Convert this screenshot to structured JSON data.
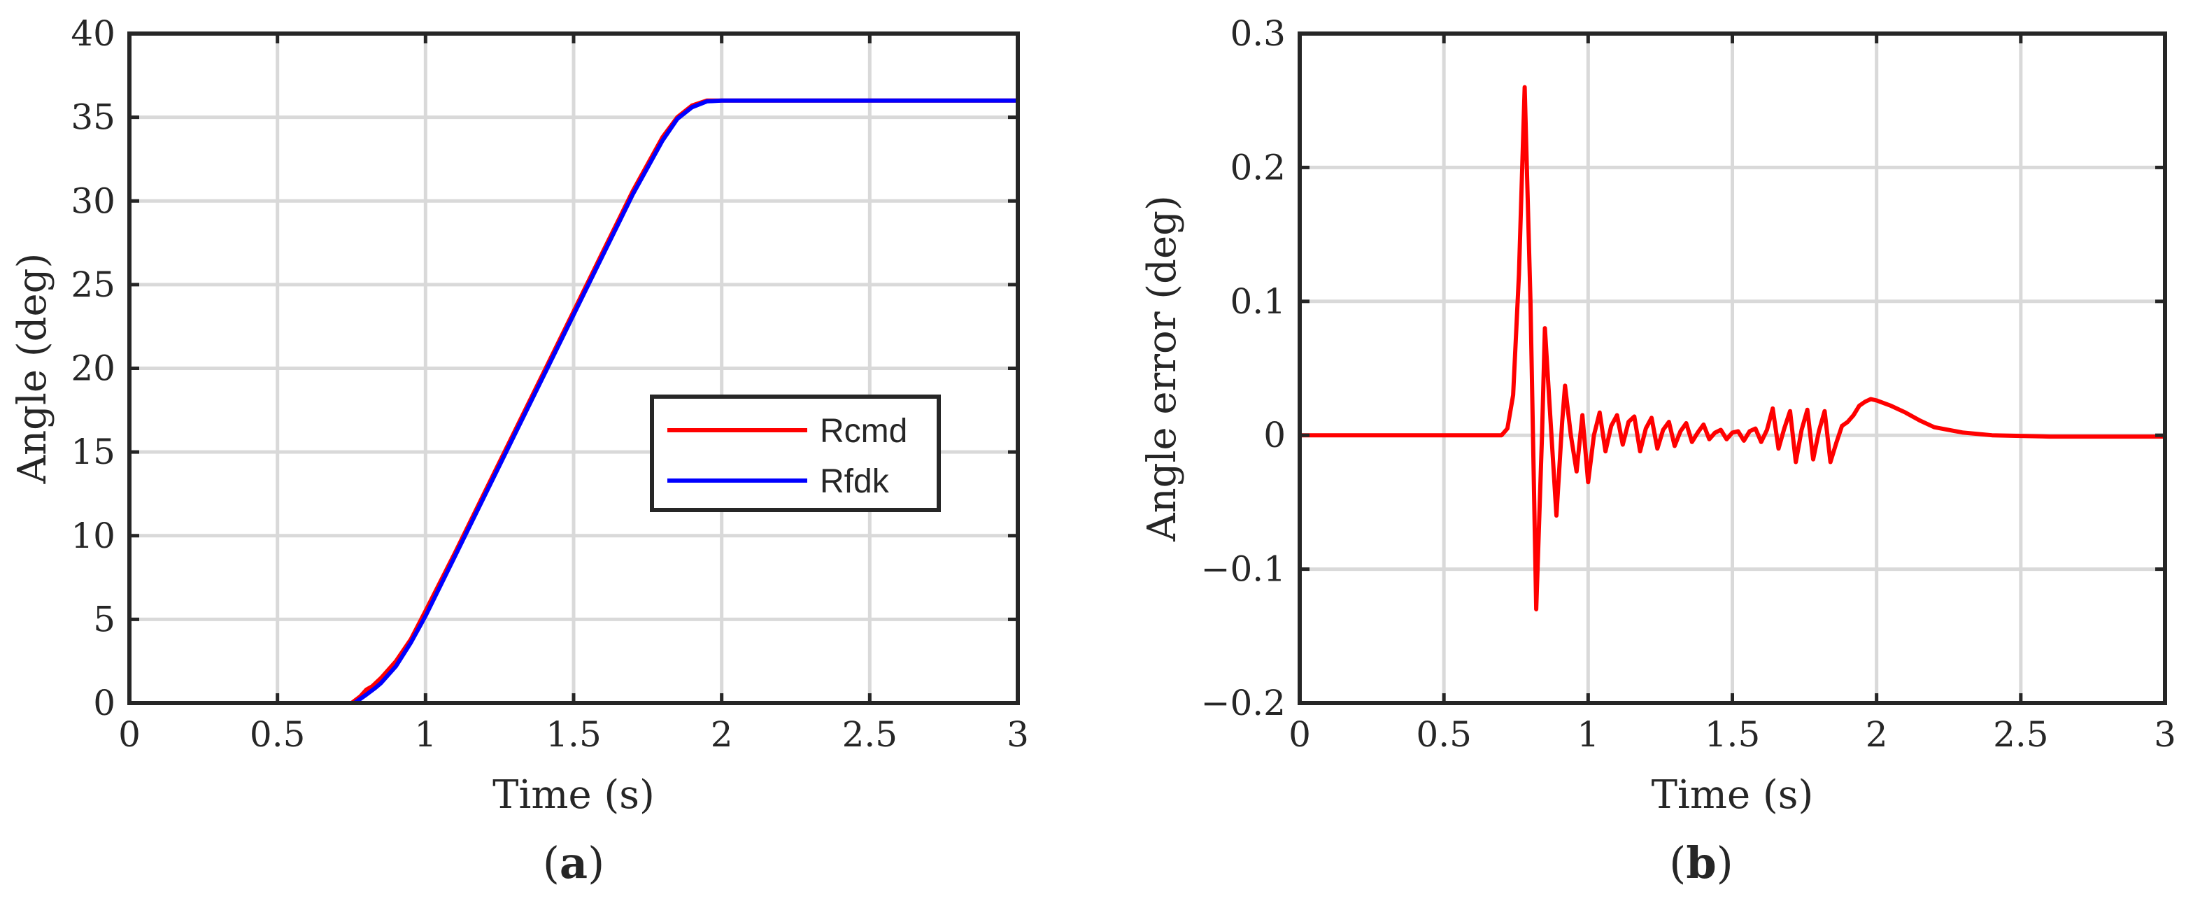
{
  "panel_labels": [
    "(a)",
    "(b)"
  ],
  "chart_data": [
    {
      "type": "line",
      "xlabel": "Time (s)",
      "ylabel": "Angle (deg)",
      "xlim": [
        0,
        3
      ],
      "ylim": [
        0,
        40
      ],
      "xticks": [
        0,
        0.5,
        1,
        1.5,
        2,
        2.5,
        3
      ],
      "xtick_labels": [
        "0",
        "0.5",
        "1",
        "1.5",
        "2",
        "2.5",
        "3"
      ],
      "yticks": [
        0,
        5,
        10,
        15,
        20,
        25,
        30,
        35,
        40
      ],
      "ytick_labels": [
        "0",
        "5",
        "10",
        "15",
        "20",
        "25",
        "30",
        "35",
        "40"
      ],
      "grid": true,
      "legend_position": "right",
      "series": [
        {
          "name": "Rcmd",
          "color": "#ff0000",
          "x": [
            0,
            0.5,
            0.75,
            0.78,
            0.8,
            0.82,
            0.85,
            0.9,
            0.95,
            1.0,
            1.1,
            1.2,
            1.3,
            1.4,
            1.5,
            1.6,
            1.7,
            1.8,
            1.85,
            1.9,
            1.95,
            2.0,
            2.5,
            3.0
          ],
          "y": [
            0,
            0,
            0,
            0.4,
            0.8,
            1.0,
            1.5,
            2.5,
            3.8,
            5.5,
            9.0,
            12.6,
            16.2,
            19.8,
            23.4,
            27.0,
            30.6,
            33.8,
            35.0,
            35.7,
            36.0,
            36.0,
            36.0,
            36.0
          ]
        },
        {
          "name": "Rfdk",
          "color": "#0000ff",
          "x": [
            0,
            0.5,
            0.76,
            0.8,
            0.83,
            0.85,
            0.9,
            0.95,
            1.0,
            1.1,
            1.2,
            1.3,
            1.4,
            1.5,
            1.6,
            1.7,
            1.8,
            1.85,
            1.9,
            1.95,
            2.0,
            2.5,
            3.0
          ],
          "y": [
            0,
            0,
            0,
            0.5,
            0.9,
            1.2,
            2.2,
            3.6,
            5.2,
            8.8,
            12.4,
            16.0,
            19.6,
            23.2,
            26.8,
            30.4,
            33.6,
            34.9,
            35.6,
            35.95,
            36.0,
            36.0,
            36.0
          ]
        }
      ]
    },
    {
      "type": "line",
      "xlabel": "Time (s)",
      "ylabel": "Angle error (deg)",
      "xlim": [
        0,
        3
      ],
      "ylim": [
        -0.2,
        0.3
      ],
      "xticks": [
        0,
        0.5,
        1,
        1.5,
        2,
        2.5,
        3
      ],
      "xtick_labels": [
        "0",
        "0.5",
        "1",
        "1.5",
        "2",
        "2.5",
        "3"
      ],
      "yticks": [
        -0.2,
        -0.1,
        0,
        0.1,
        0.2,
        0.3
      ],
      "ytick_labels": [
        "−0.2",
        "−0.1",
        "0",
        "0.1",
        "0.2",
        "0.3"
      ],
      "grid": true,
      "series": [
        {
          "color": "#ff0000",
          "x": [
            0,
            0.7,
            0.72,
            0.74,
            0.76,
            0.78,
            0.8,
            0.82,
            0.84,
            0.85,
            0.87,
            0.89,
            0.91,
            0.92,
            0.94,
            0.96,
            0.98,
            1.0,
            1.02,
            1.04,
            1.06,
            1.08,
            1.1,
            1.12,
            1.14,
            1.16,
            1.18,
            1.2,
            1.22,
            1.24,
            1.26,
            1.28,
            1.3,
            1.32,
            1.34,
            1.36,
            1.38,
            1.4,
            1.42,
            1.44,
            1.46,
            1.48,
            1.5,
            1.52,
            1.54,
            1.56,
            1.58,
            1.6,
            1.62,
            1.64,
            1.66,
            1.68,
            1.7,
            1.72,
            1.74,
            1.76,
            1.78,
            1.8,
            1.82,
            1.84,
            1.86,
            1.88,
            1.9,
            1.92,
            1.94,
            1.96,
            1.98,
            2.0,
            2.05,
            2.1,
            2.15,
            2.2,
            2.3,
            2.4,
            2.6,
            3.0
          ],
          "y": [
            0,
            0,
            0.005,
            0.03,
            0.12,
            0.26,
            0.1,
            -0.13,
            0.0,
            0.08,
            0.01,
            -0.06,
            0.01,
            0.037,
            0.0,
            -0.027,
            0.015,
            -0.035,
            0.0,
            0.017,
            -0.012,
            0.007,
            0.015,
            -0.007,
            0.01,
            0.014,
            -0.012,
            0.005,
            0.013,
            -0.01,
            0.004,
            0.01,
            -0.008,
            0.003,
            0.009,
            -0.005,
            0.002,
            0.008,
            -0.003,
            0.002,
            0.004,
            -0.003,
            0.002,
            0.003,
            -0.004,
            0.003,
            0.005,
            -0.005,
            0.004,
            0.02,
            -0.01,
            0.005,
            0.018,
            -0.02,
            0.004,
            0.019,
            -0.018,
            0.003,
            0.018,
            -0.02,
            -0.006,
            0.007,
            0.01,
            0.015,
            0.022,
            0.025,
            0.027,
            0.026,
            0.022,
            0.017,
            0.011,
            0.006,
            0.002,
            0.0,
            -0.001,
            -0.001
          ]
        }
      ]
    }
  ]
}
